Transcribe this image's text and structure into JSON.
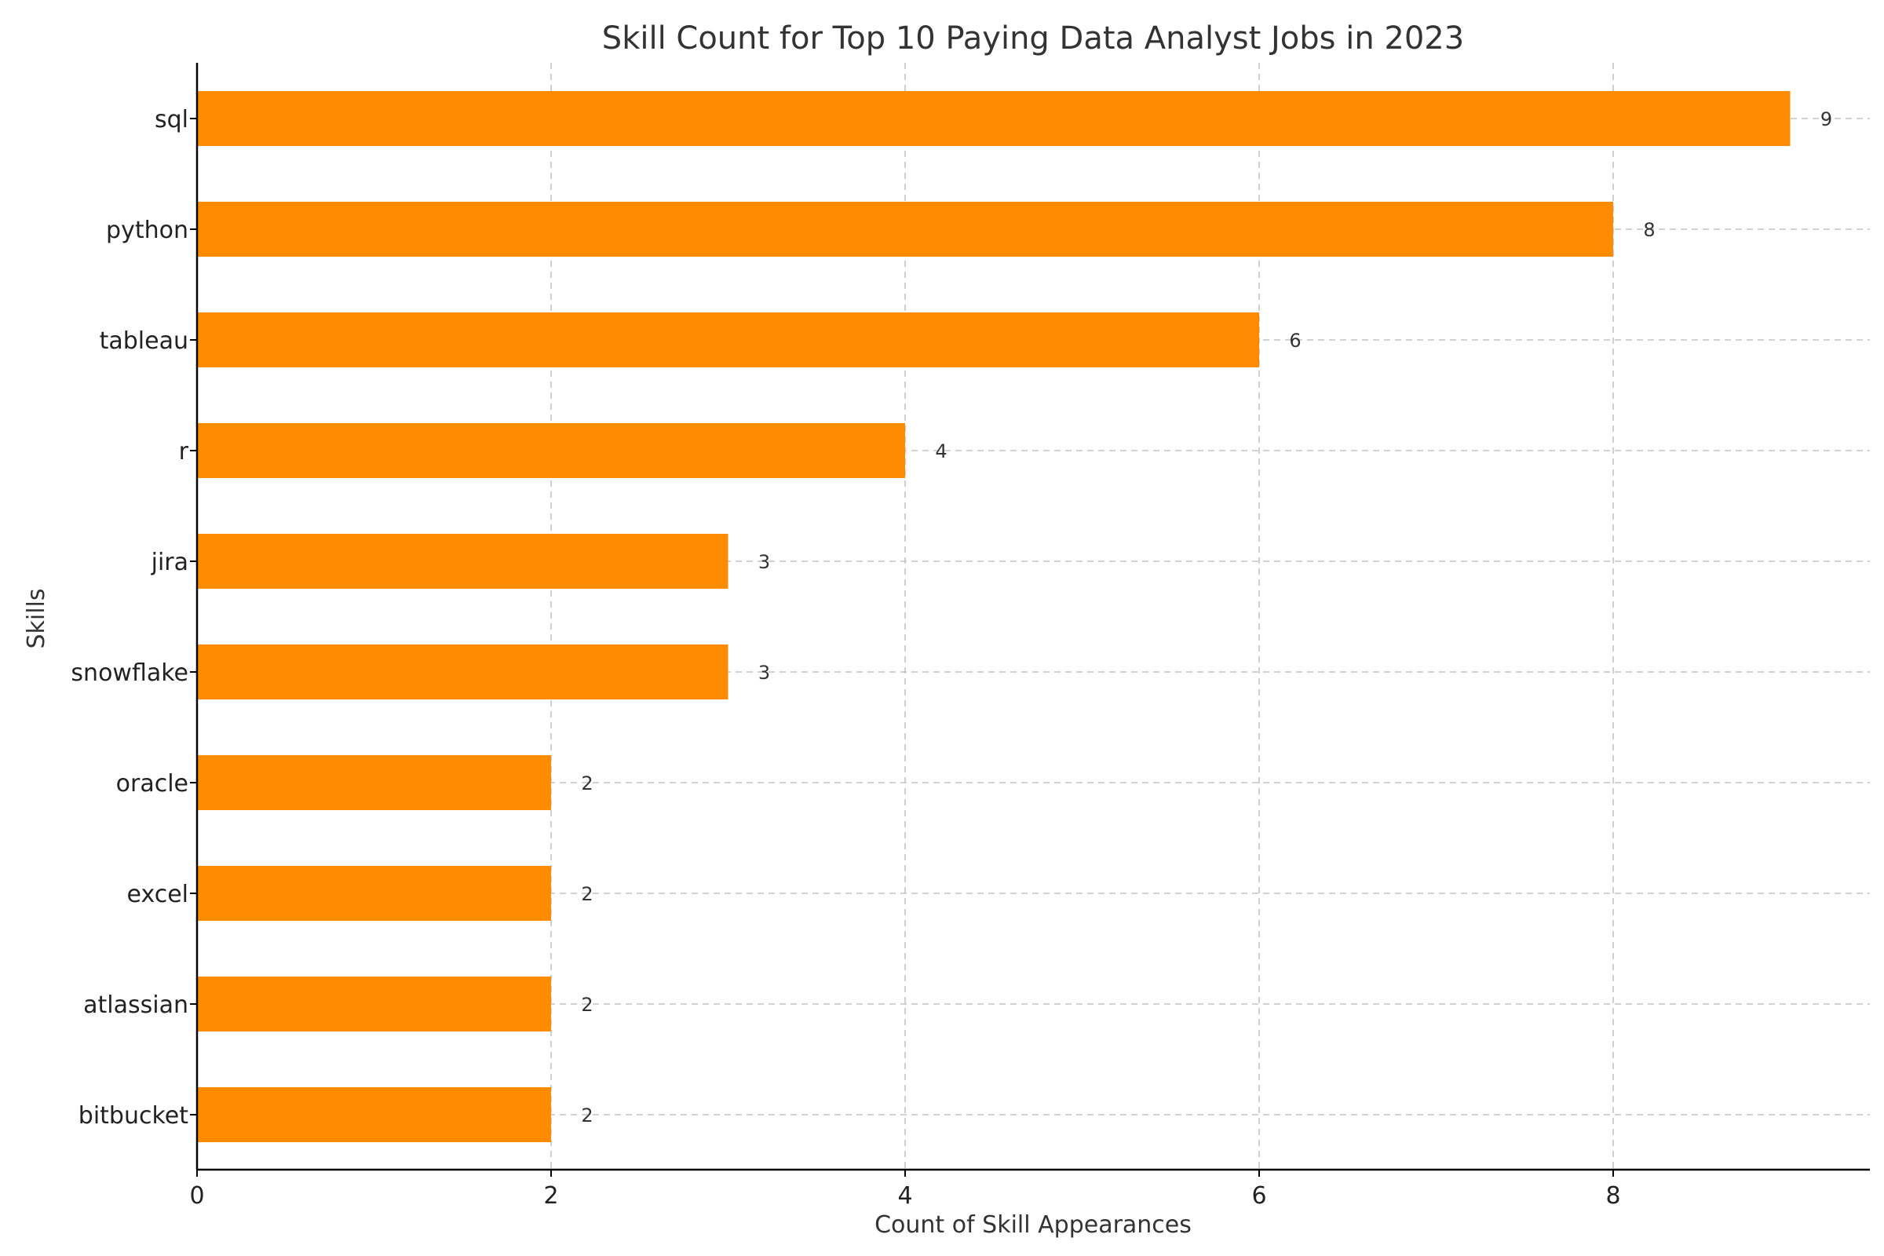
{
  "chart_data": {
    "type": "bar",
    "orientation": "horizontal",
    "title": "Skill Count for Top 10 Paying Data Analyst Jobs in 2023",
    "xlabel": "Count of Skill Appearances",
    "ylabel": "Skills",
    "categories": [
      "sql",
      "python",
      "tableau",
      "r",
      "jira",
      "snowflake",
      "oracle",
      "excel",
      "atlassian",
      "bitbucket"
    ],
    "values": [
      9,
      8,
      6,
      4,
      3,
      3,
      2,
      2,
      2,
      2
    ],
    "xlim": [
      0,
      9.45
    ],
    "xticks": [
      0,
      2,
      4,
      6,
      8
    ],
    "grid": true,
    "bar_color": "#FF8C00",
    "data_labels": true
  }
}
